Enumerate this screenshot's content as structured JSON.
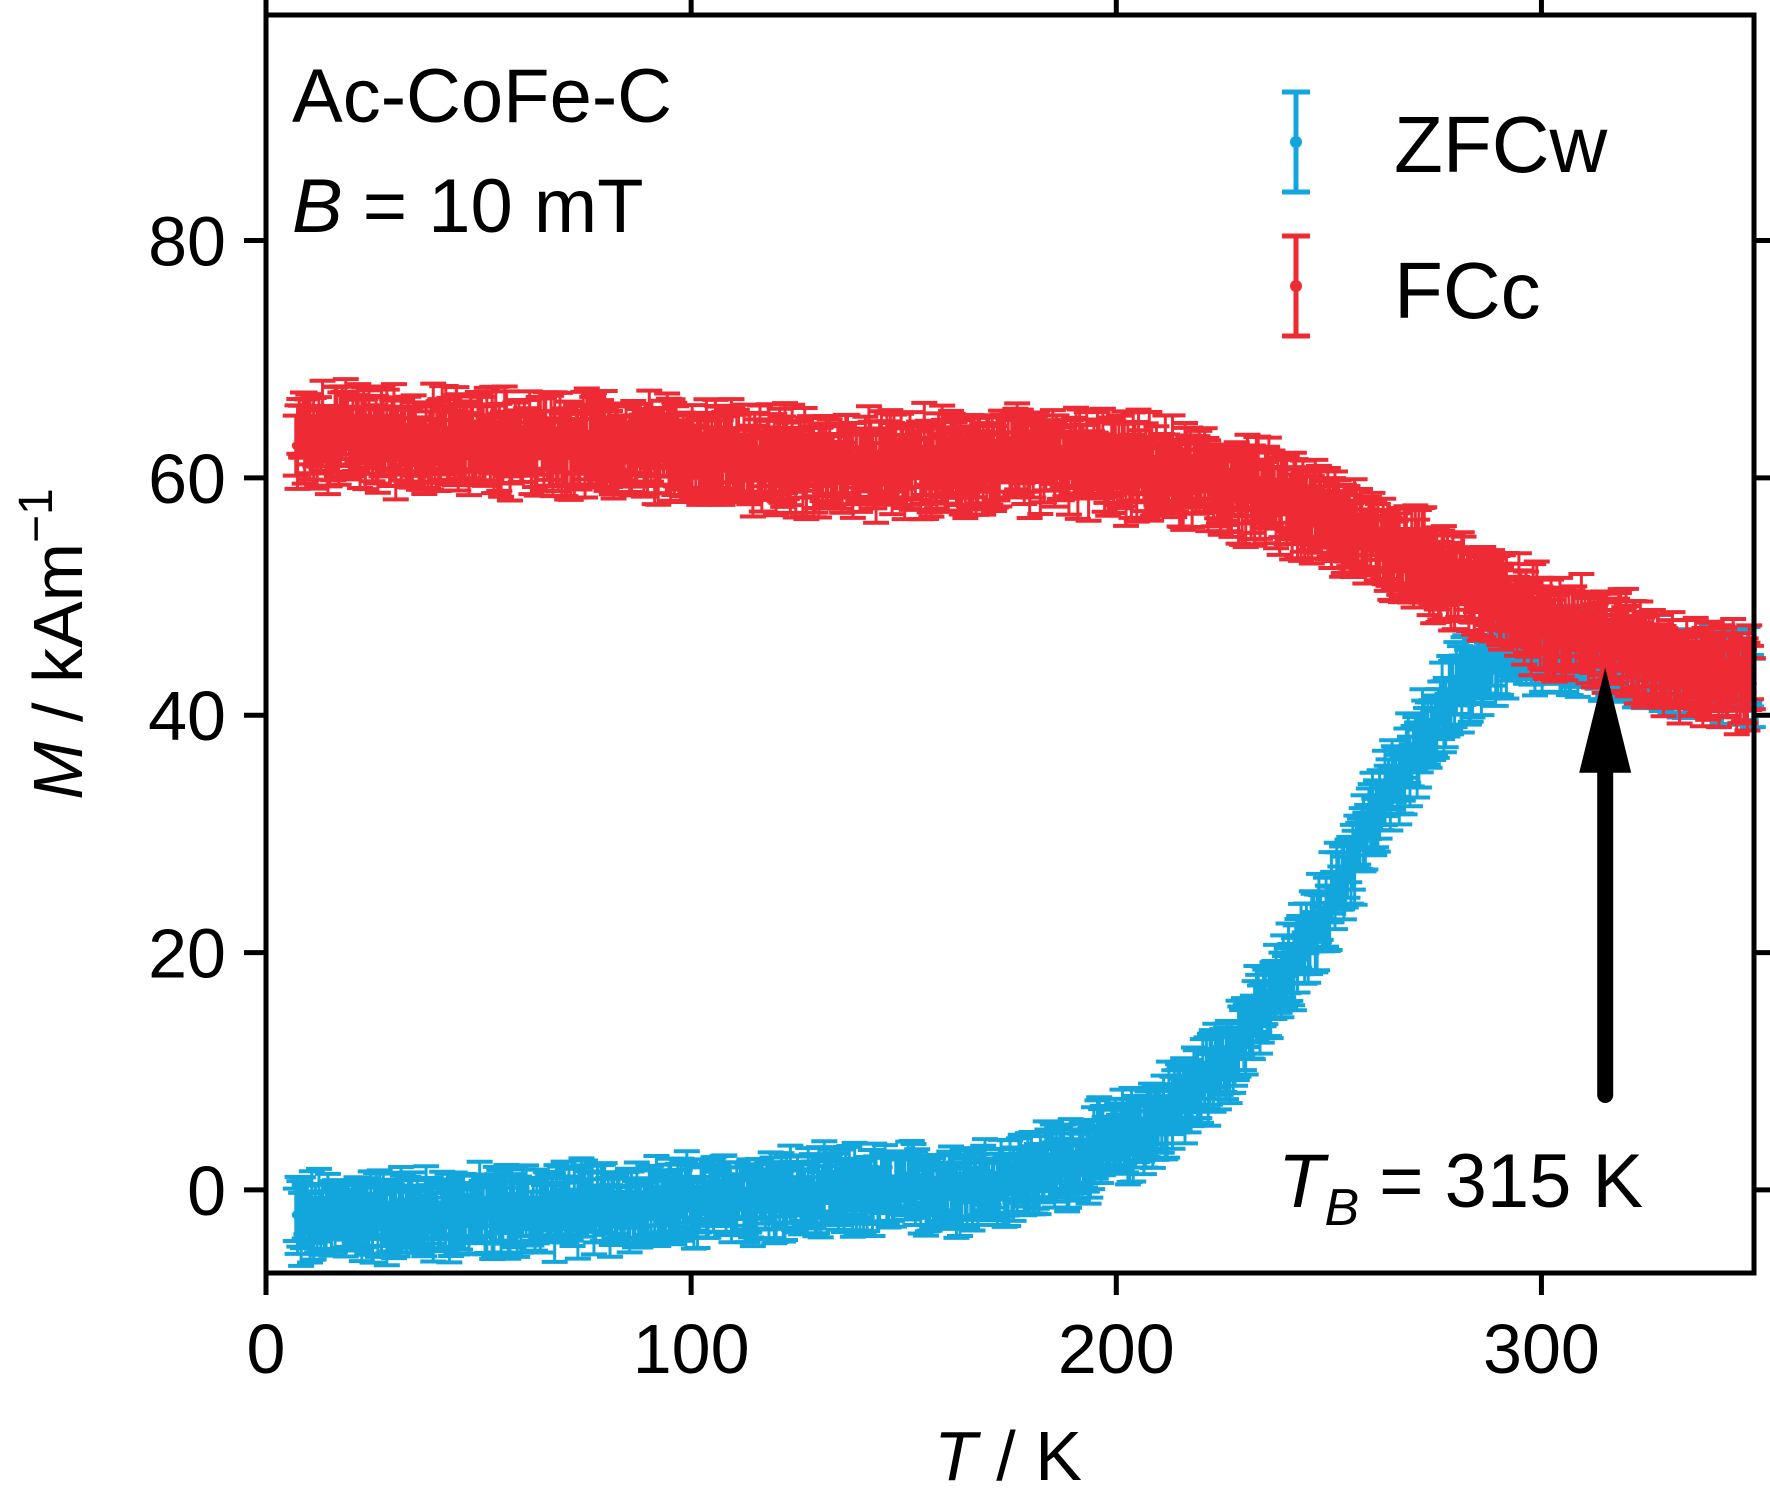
{
  "chart_data": {
    "type": "scatter",
    "xlabel": {
      "symbol": "T",
      "unit": "K"
    },
    "ylabel": {
      "symbol": "M",
      "unit": "kAm",
      "unit_sup": "−1"
    },
    "xlim": [
      0,
      350
    ],
    "ylim": [
      -7,
      99
    ],
    "x_ticks": [
      0,
      100,
      200,
      300
    ],
    "y_ticks": [
      0,
      20,
      40,
      60,
      80
    ],
    "grid": false,
    "legend_position": "top-right",
    "annotations": {
      "sample": "Ac-CoFe-C",
      "field_symbol": "B",
      "field_value": "= 10 mT",
      "tb_symbol": "T",
      "tb_subscript": "B",
      "tb_value": "= 315 K",
      "tb_arrow": {
        "x": 315,
        "y_from": 8,
        "y_to": 44
      }
    },
    "series": [
      {
        "name": "ZFCw",
        "color": "#13a6dc",
        "error_approx": 2.5,
        "points": [
          [
            7,
            -2.5
          ],
          [
            20,
            -2.2
          ],
          [
            40,
            -2
          ],
          [
            60,
            -1.8
          ],
          [
            80,
            -1.4
          ],
          [
            100,
            -1
          ],
          [
            120,
            -0.6
          ],
          [
            140,
            -0.2
          ],
          [
            160,
            0.2
          ],
          [
            170,
            0.6
          ],
          [
            180,
            1.3
          ],
          [
            190,
            2.5
          ],
          [
            200,
            4
          ],
          [
            210,
            6
          ],
          [
            220,
            9
          ],
          [
            230,
            13
          ],
          [
            240,
            18
          ],
          [
            250,
            24
          ],
          [
            260,
            31
          ],
          [
            270,
            37
          ],
          [
            280,
            42
          ],
          [
            290,
            45
          ],
          [
            300,
            45.5
          ],
          [
            310,
            45
          ],
          [
            320,
            44.5
          ],
          [
            330,
            44
          ],
          [
            340,
            43.5
          ],
          [
            350,
            43
          ]
        ]
      },
      {
        "name": "FCc",
        "color": "#ee2a35",
        "error_approx": 3,
        "points": [
          [
            7,
            63.5
          ],
          [
            20,
            63.5
          ],
          [
            40,
            63
          ],
          [
            60,
            63
          ],
          [
            80,
            62.8
          ],
          [
            100,
            62.2
          ],
          [
            120,
            61.5
          ],
          [
            140,
            61
          ],
          [
            160,
            61.3
          ],
          [
            180,
            61.5
          ],
          [
            200,
            61
          ],
          [
            220,
            60
          ],
          [
            240,
            58
          ],
          [
            260,
            55
          ],
          [
            280,
            51.5
          ],
          [
            290,
            49.5
          ],
          [
            300,
            48
          ],
          [
            310,
            47
          ],
          [
            320,
            46
          ],
          [
            330,
            44.5
          ],
          [
            340,
            43.5
          ],
          [
            350,
            43
          ]
        ]
      }
    ]
  }
}
